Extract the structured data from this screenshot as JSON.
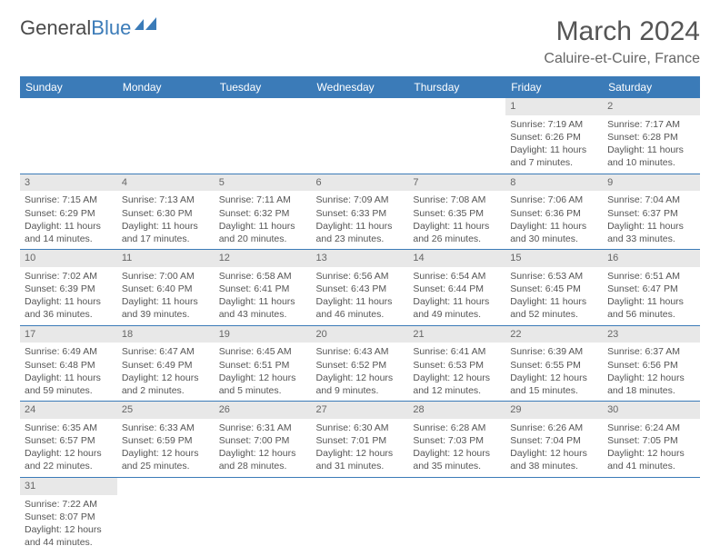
{
  "logo": {
    "text1": "General",
    "text2": "Blue"
  },
  "title": "March 2024",
  "subtitle": "Caluire-et-Cuire, France",
  "colors": {
    "header_bg": "#3b7bb8",
    "header_text": "#ffffff",
    "daynum_bg": "#e8e8e8",
    "border": "#3b7bb8",
    "text": "#555555"
  },
  "dayHeaders": [
    "Sunday",
    "Monday",
    "Tuesday",
    "Wednesday",
    "Thursday",
    "Friday",
    "Saturday"
  ],
  "weeks": [
    [
      null,
      null,
      null,
      null,
      null,
      {
        "n": "1",
        "sr": "7:19 AM",
        "ss": "6:26 PM",
        "dl": "11 hours and 7 minutes."
      },
      {
        "n": "2",
        "sr": "7:17 AM",
        "ss": "6:28 PM",
        "dl": "11 hours and 10 minutes."
      }
    ],
    [
      {
        "n": "3",
        "sr": "7:15 AM",
        "ss": "6:29 PM",
        "dl": "11 hours and 14 minutes."
      },
      {
        "n": "4",
        "sr": "7:13 AM",
        "ss": "6:30 PM",
        "dl": "11 hours and 17 minutes."
      },
      {
        "n": "5",
        "sr": "7:11 AM",
        "ss": "6:32 PM",
        "dl": "11 hours and 20 minutes."
      },
      {
        "n": "6",
        "sr": "7:09 AM",
        "ss": "6:33 PM",
        "dl": "11 hours and 23 minutes."
      },
      {
        "n": "7",
        "sr": "7:08 AM",
        "ss": "6:35 PM",
        "dl": "11 hours and 26 minutes."
      },
      {
        "n": "8",
        "sr": "7:06 AM",
        "ss": "6:36 PM",
        "dl": "11 hours and 30 minutes."
      },
      {
        "n": "9",
        "sr": "7:04 AM",
        "ss": "6:37 PM",
        "dl": "11 hours and 33 minutes."
      }
    ],
    [
      {
        "n": "10",
        "sr": "7:02 AM",
        "ss": "6:39 PM",
        "dl": "11 hours and 36 minutes."
      },
      {
        "n": "11",
        "sr": "7:00 AM",
        "ss": "6:40 PM",
        "dl": "11 hours and 39 minutes."
      },
      {
        "n": "12",
        "sr": "6:58 AM",
        "ss": "6:41 PM",
        "dl": "11 hours and 43 minutes."
      },
      {
        "n": "13",
        "sr": "6:56 AM",
        "ss": "6:43 PM",
        "dl": "11 hours and 46 minutes."
      },
      {
        "n": "14",
        "sr": "6:54 AM",
        "ss": "6:44 PM",
        "dl": "11 hours and 49 minutes."
      },
      {
        "n": "15",
        "sr": "6:53 AM",
        "ss": "6:45 PM",
        "dl": "11 hours and 52 minutes."
      },
      {
        "n": "16",
        "sr": "6:51 AM",
        "ss": "6:47 PM",
        "dl": "11 hours and 56 minutes."
      }
    ],
    [
      {
        "n": "17",
        "sr": "6:49 AM",
        "ss": "6:48 PM",
        "dl": "11 hours and 59 minutes."
      },
      {
        "n": "18",
        "sr": "6:47 AM",
        "ss": "6:49 PM",
        "dl": "12 hours and 2 minutes."
      },
      {
        "n": "19",
        "sr": "6:45 AM",
        "ss": "6:51 PM",
        "dl": "12 hours and 5 minutes."
      },
      {
        "n": "20",
        "sr": "6:43 AM",
        "ss": "6:52 PM",
        "dl": "12 hours and 9 minutes."
      },
      {
        "n": "21",
        "sr": "6:41 AM",
        "ss": "6:53 PM",
        "dl": "12 hours and 12 minutes."
      },
      {
        "n": "22",
        "sr": "6:39 AM",
        "ss": "6:55 PM",
        "dl": "12 hours and 15 minutes."
      },
      {
        "n": "23",
        "sr": "6:37 AM",
        "ss": "6:56 PM",
        "dl": "12 hours and 18 minutes."
      }
    ],
    [
      {
        "n": "24",
        "sr": "6:35 AM",
        "ss": "6:57 PM",
        "dl": "12 hours and 22 minutes."
      },
      {
        "n": "25",
        "sr": "6:33 AM",
        "ss": "6:59 PM",
        "dl": "12 hours and 25 minutes."
      },
      {
        "n": "26",
        "sr": "6:31 AM",
        "ss": "7:00 PM",
        "dl": "12 hours and 28 minutes."
      },
      {
        "n": "27",
        "sr": "6:30 AM",
        "ss": "7:01 PM",
        "dl": "12 hours and 31 minutes."
      },
      {
        "n": "28",
        "sr": "6:28 AM",
        "ss": "7:03 PM",
        "dl": "12 hours and 35 minutes."
      },
      {
        "n": "29",
        "sr": "6:26 AM",
        "ss": "7:04 PM",
        "dl": "12 hours and 38 minutes."
      },
      {
        "n": "30",
        "sr": "6:24 AM",
        "ss": "7:05 PM",
        "dl": "12 hours and 41 minutes."
      }
    ],
    [
      {
        "n": "31",
        "sr": "7:22 AM",
        "ss": "8:07 PM",
        "dl": "12 hours and 44 minutes."
      },
      null,
      null,
      null,
      null,
      null,
      null
    ]
  ],
  "labels": {
    "sunrise": "Sunrise: ",
    "sunset": "Sunset: ",
    "daylight": "Daylight: "
  }
}
